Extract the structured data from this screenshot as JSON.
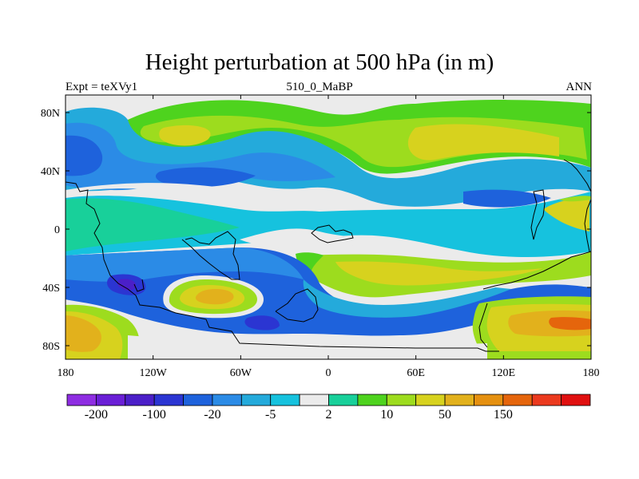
{
  "chart_data": {
    "type": "heatmap",
    "title": "Height perturbation at 500 hPa (in m)",
    "subtitle_left": "Expt = teXVy1",
    "subtitle_center": "510_0_MaBP",
    "subtitle_right": "ANN",
    "x_ticks": [
      "180",
      "120W",
      "60W",
      "0",
      "60E",
      "120E",
      "180"
    ],
    "y_ticks": [
      "80N",
      "40N",
      "0",
      "40S",
      "80S"
    ],
    "x_range": [
      -180,
      180
    ],
    "y_range": [
      -90,
      90
    ],
    "colorbar": {
      "colors": [
        "#8e2de2",
        "#6a1fd6",
        "#4b1fc8",
        "#2b35d2",
        "#1e62dc",
        "#2b8be6",
        "#24aadb",
        "#16c2de",
        "#ebebeb",
        "#18d09a",
        "#4ed31e",
        "#9ddc1e",
        "#d7d21e",
        "#e2b11c",
        "#e59010",
        "#e5650c",
        "#eb3a1e",
        "#e01010"
      ],
      "labels": [
        {
          "text": "-200",
          "boundary": 1
        },
        {
          "text": "-100",
          "boundary": 3
        },
        {
          "text": "-20",
          "boundary": 5
        },
        {
          "text": "-5",
          "boundary": 7
        },
        {
          "text": "2",
          "boundary": 9
        },
        {
          "text": "10",
          "boundary": 11
        },
        {
          "text": "50",
          "boundary": 13
        },
        {
          "text": "150",
          "boundary": 15
        }
      ]
    }
  }
}
